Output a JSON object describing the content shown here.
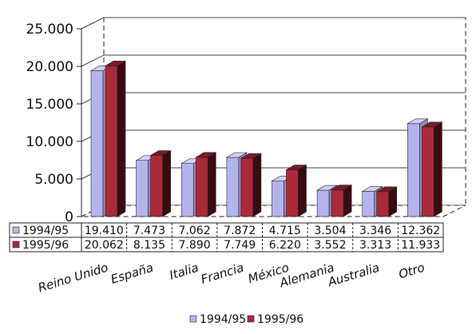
{
  "chart_data": {
    "type": "bar",
    "categories": [
      "Reino Unido",
      "España",
      "Italia",
      "Francia",
      "México",
      "Alemania",
      "Australia",
      "Otro"
    ],
    "series": [
      {
        "name": "1994/95",
        "values": [
          19410,
          7473,
          7062,
          7872,
          4715,
          3504,
          3346,
          12362
        ]
      },
      {
        "name": "1995/96",
        "values": [
          20062,
          8135,
          7890,
          7749,
          6220,
          3552,
          3313,
          11933
        ]
      }
    ],
    "value_labels": [
      [
        "19.410",
        "7.473",
        "7.062",
        "7.872",
        "4.715",
        "3.504",
        "3.346",
        "12.362"
      ],
      [
        "20.062",
        "8.135",
        "7.890",
        "7.749",
        "6.220",
        "3.552",
        "3.313",
        "11.933"
      ]
    ],
    "yticks": [
      {
        "value": 0,
        "label": "0"
      },
      {
        "value": 5000,
        "label": "5.000"
      },
      {
        "value": 10000,
        "label": "10.000"
      },
      {
        "value": 15000,
        "label": "15.000"
      },
      {
        "value": 20000,
        "label": "20.000"
      },
      {
        "value": 25000,
        "label": "25.000"
      }
    ],
    "ylim": [
      0,
      25000
    ],
    "title": "",
    "xlabel": "",
    "ylabel": "",
    "grid": true,
    "projection": "3d",
    "legend": "bottom",
    "data_table": true,
    "colors": {
      "1994/95_front": "#b4b4ec",
      "1994/95_side": "#8c8cc8",
      "1995/96_front": "#aa2a3a",
      "1995/96_side": "#3c0a10",
      "1995/96_top": "#7a1a26"
    }
  }
}
